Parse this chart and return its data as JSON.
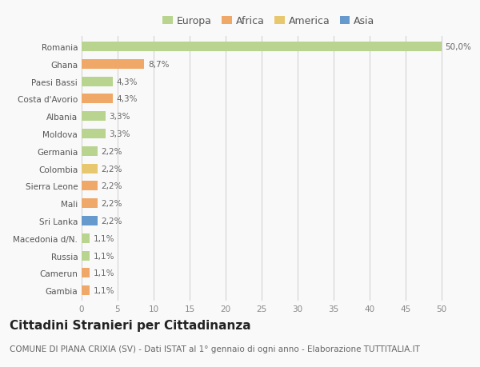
{
  "categories": [
    "Gambia",
    "Camerun",
    "Russia",
    "Macedonia d/N.",
    "Sri Lanka",
    "Mali",
    "Sierra Leone",
    "Colombia",
    "Germania",
    "Moldova",
    "Albania",
    "Costa d'Avorio",
    "Paesi Bassi",
    "Ghana",
    "Romania"
  ],
  "values": [
    1.1,
    1.1,
    1.1,
    1.1,
    2.2,
    2.2,
    2.2,
    2.2,
    2.2,
    3.3,
    3.3,
    4.3,
    4.3,
    8.7,
    50.0
  ],
  "colors": [
    "#f0a868",
    "#f0a868",
    "#b8d48e",
    "#b8d48e",
    "#6699cc",
    "#f0a868",
    "#f0a868",
    "#e8c86e",
    "#b8d48e",
    "#b8d48e",
    "#b8d48e",
    "#f0a868",
    "#b8d48e",
    "#f0a868",
    "#b8d48e"
  ],
  "labels": [
    "1,1%",
    "1,1%",
    "1,1%",
    "1,1%",
    "2,2%",
    "2,2%",
    "2,2%",
    "2,2%",
    "2,2%",
    "3,3%",
    "3,3%",
    "4,3%",
    "4,3%",
    "8,7%",
    "50,0%"
  ],
  "legend": {
    "Europa": "#b8d48e",
    "Africa": "#f0a868",
    "America": "#e8c86e",
    "Asia": "#6699cc"
  },
  "title": "Cittadini Stranieri per Cittadinanza",
  "subtitle": "COMUNE DI PIANA CRIXIA (SV) - Dati ISTAT al 1° gennaio di ogni anno - Elaborazione TUTTITALIA.IT",
  "xlim": [
    0,
    52
  ],
  "xticks": [
    0,
    5,
    10,
    15,
    20,
    25,
    30,
    35,
    40,
    45,
    50
  ],
  "background_color": "#f9f9f9",
  "grid_color": "#cccccc",
  "bar_height": 0.55,
  "title_fontsize": 11,
  "subtitle_fontsize": 7.5,
  "label_fontsize": 7.5,
  "tick_fontsize": 7.5,
  "legend_fontsize": 9
}
